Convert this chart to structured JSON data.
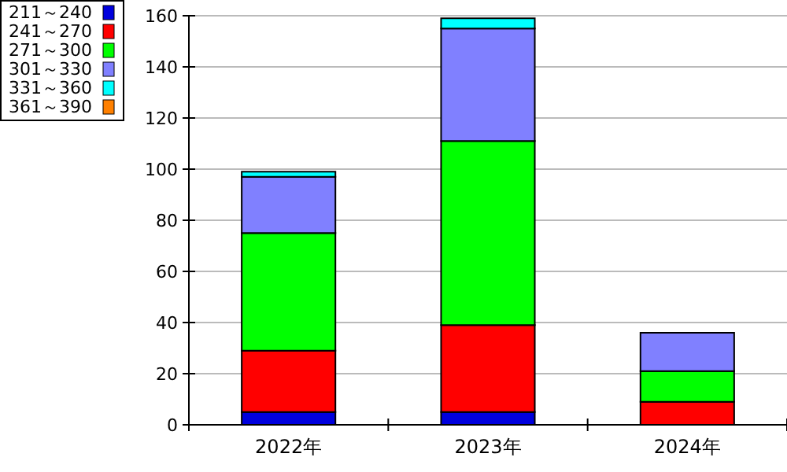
{
  "chart_data": {
    "type": "bar",
    "stacked": true,
    "categories": [
      "2022年",
      "2023年",
      "2024年"
    ],
    "series": [
      {
        "name": "211～240",
        "color": "#0000dd",
        "values": [
          5,
          5,
          0
        ]
      },
      {
        "name": "241～270",
        "color": "#ff0000",
        "values": [
          24,
          34,
          9
        ]
      },
      {
        "name": "271～300",
        "color": "#00ff00",
        "values": [
          46,
          72,
          12
        ]
      },
      {
        "name": "301～330",
        "color": "#8080ff",
        "values": [
          22,
          44,
          15
        ]
      },
      {
        "name": "331～360",
        "color": "#00ffff",
        "values": [
          2,
          4,
          0
        ]
      },
      {
        "name": "361～390",
        "color": "#ff8000",
        "values": [
          0,
          0,
          0
        ]
      }
    ],
    "ylim": [
      0,
      160
    ],
    "yticks": [
      0,
      20,
      40,
      60,
      80,
      100,
      120,
      140,
      160
    ],
    "grid": "y",
    "legend": "top left"
  }
}
